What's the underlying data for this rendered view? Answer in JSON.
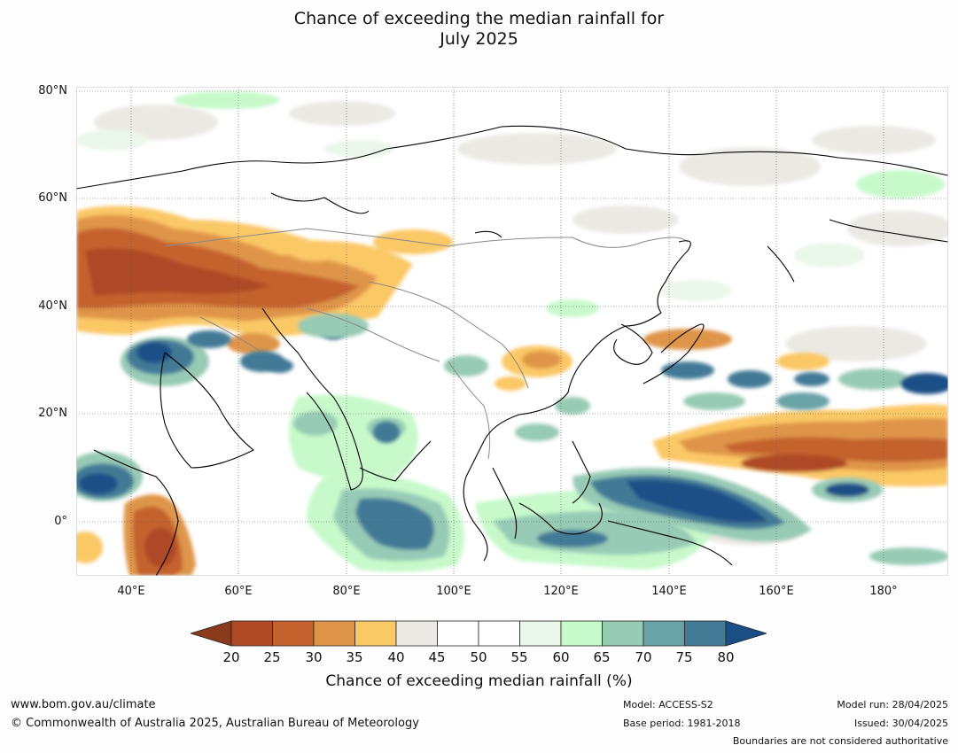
{
  "title": {
    "line1": "Chance of exceeding the median rainfall for",
    "line2": "July 2025"
  },
  "axes": {
    "lat_labels": [
      "80°N",
      "60°N",
      "40°N",
      "20°N",
      "0°"
    ],
    "lon_labels": [
      "40°E",
      "60°E",
      "80°E",
      "100°E",
      "120°E",
      "140°E",
      "160°E",
      "180°"
    ],
    "lat_values": [
      80,
      60,
      40,
      20,
      0
    ],
    "lon_values": [
      40,
      60,
      80,
      100,
      120,
      140,
      160,
      180
    ],
    "lat_range": [
      -10,
      80
    ],
    "lon_range": [
      30,
      190
    ]
  },
  "colorbar": {
    "title": "Chance of exceeding median rainfall (%)",
    "ticks": [
      "20",
      "25",
      "30",
      "35",
      "40",
      "45",
      "50",
      "55",
      "60",
      "65",
      "70",
      "75",
      "80"
    ],
    "colors": {
      "under": "#8c3a1c",
      "bins": [
        "#ad4a25",
        "#c4622e",
        "#df9549",
        "#fbc866",
        "#ebe9e4",
        "#ffffff",
        "#ffffff",
        "#eaf7ea",
        "#c7f9cb",
        "#97cbb5",
        "#6aa3a6",
        "#437a96"
      ],
      "over": "#1a4f86"
    }
  },
  "map_features": {
    "dry_color": "#c4622e",
    "wet_color": "#437a96",
    "coast_color": "#000000",
    "border_color": "#888888",
    "grid": "dotted"
  },
  "footer": {
    "url": "www.bom.gov.au/climate",
    "copyright": "© Commonwealth of Australia 2025, Australian Bureau of Meteorology",
    "model": "Model: ACCESS-S2",
    "base_period": "Base period: 1981-2018",
    "model_run": "Model run: 28/04/2025",
    "issued": "Issued: 30/04/2025",
    "disclaimer": "Boundaries are not considered authoritative"
  }
}
